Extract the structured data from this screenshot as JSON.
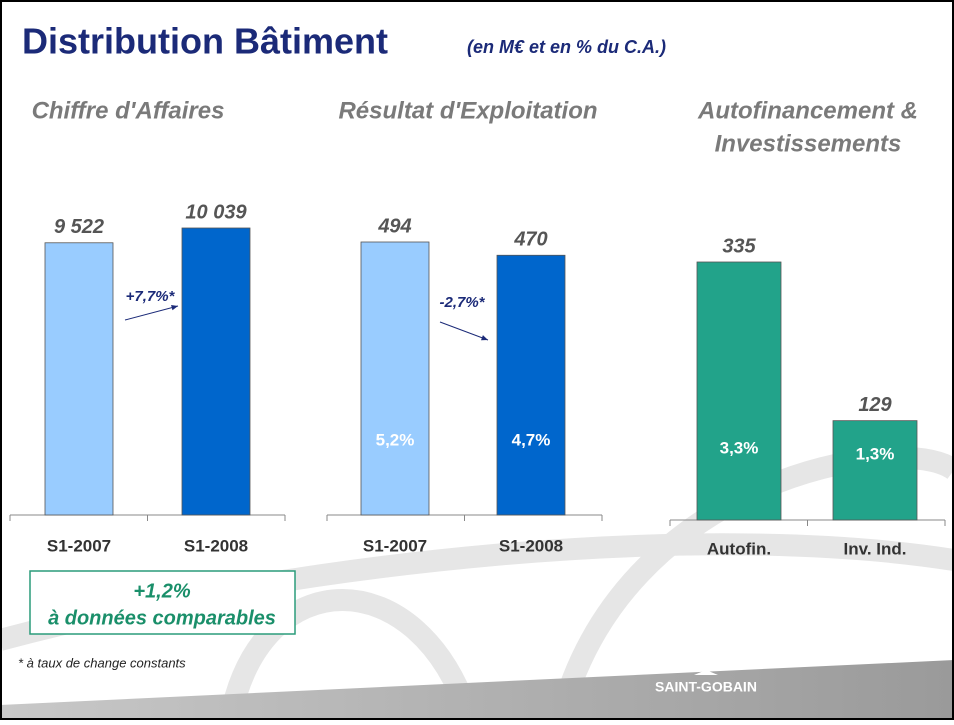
{
  "header": {
    "title": "Distribution Bâtiment",
    "subtitle": "(en M€ et en % du C.A.)"
  },
  "chart_data": [
    {
      "type": "bar",
      "title": "Chiffre d'Affaires",
      "categories": [
        "S1-2007",
        "S1-2008"
      ],
      "values": [
        9522,
        10039
      ],
      "value_labels": [
        "9 522",
        "10 039"
      ],
      "colors": [
        "#99ccff",
        "#0066cc"
      ],
      "annotation": "+7,7%*"
    },
    {
      "type": "bar",
      "title": "Résultat d'Exploitation",
      "categories": [
        "S1-2007",
        "S1-2008"
      ],
      "values": [
        494,
        470
      ],
      "colors": [
        "#99ccff",
        "#0066cc"
      ],
      "pct_of_sales": [
        5.2,
        4.7
      ],
      "pct_labels": [
        "5,2%",
        "4,7%"
      ],
      "annotation": "-2,7%*"
    },
    {
      "type": "bar",
      "title": [
        "Autofinancement &",
        "Investissements"
      ],
      "categories": [
        "Autofin.",
        "Inv. Ind."
      ],
      "values": [
        335,
        129
      ],
      "colors": [
        "#22a38a",
        "#22a38a"
      ],
      "pct_of_sales": [
        3.3,
        1.3
      ],
      "pct_labels": [
        "3,3%",
        "1,3%"
      ]
    }
  ],
  "note": {
    "line1": "+1,2%",
    "line2": "à données comparables"
  },
  "footnote": "* à taux de change constants",
  "logo": "SAINT-GOBAIN"
}
